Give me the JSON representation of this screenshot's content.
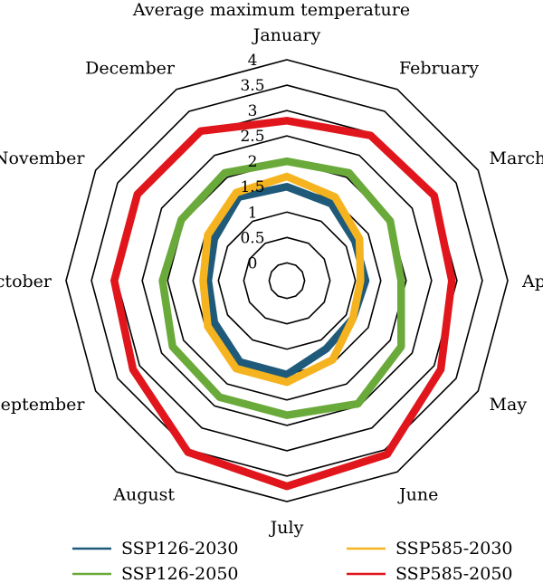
{
  "chart_data": {
    "type": "radar",
    "title": "Average maximum temperature",
    "categories": [
      "January",
      "February",
      "March",
      "April",
      "May",
      "June",
      "July",
      "August",
      "September",
      "October",
      "November",
      "December"
    ],
    "rlim": [
      0,
      4
    ],
    "ticks": [
      0,
      0.5,
      1,
      1.5,
      2,
      2.5,
      3,
      3.5,
      4
    ],
    "tick_labels": [
      "0",
      "0.5",
      "1",
      "1.5",
      "2",
      "2.5",
      "3",
      "3.5",
      "4"
    ],
    "grid": true,
    "legend_position": "bottom",
    "series": [
      {
        "name": "SSP126-2030",
        "color": "#1f5a7a",
        "values": [
          1.5,
          1.4,
          1.2,
          1.2,
          1.15,
          1.2,
          1.5,
          1.5,
          1.3,
          1.2,
          1.3,
          1.55
        ]
      },
      {
        "name": "SSP126-2050",
        "color": "#6aaa3a",
        "values": [
          2.0,
          2.1,
          2.0,
          1.9,
          2.25,
          2.45,
          2.3,
          2.3,
          2.25,
          2.1,
          2.05,
          2.1
        ]
      },
      {
        "name": "SSP585-2030",
        "color": "#f5b41f",
        "values": [
          1.7,
          1.55,
          1.3,
          1.1,
          1.15,
          1.45,
          1.65,
          1.65,
          1.45,
          1.3,
          1.45,
          1.65
        ]
      },
      {
        "name": "SSP585-2050",
        "color": "#e0161c",
        "values": [
          2.8,
          2.95,
          3.0,
          2.9,
          3.15,
          3.6,
          3.7,
          3.55,
          3.15,
          3.05,
          3.05,
          3.05
        ]
      }
    ]
  }
}
